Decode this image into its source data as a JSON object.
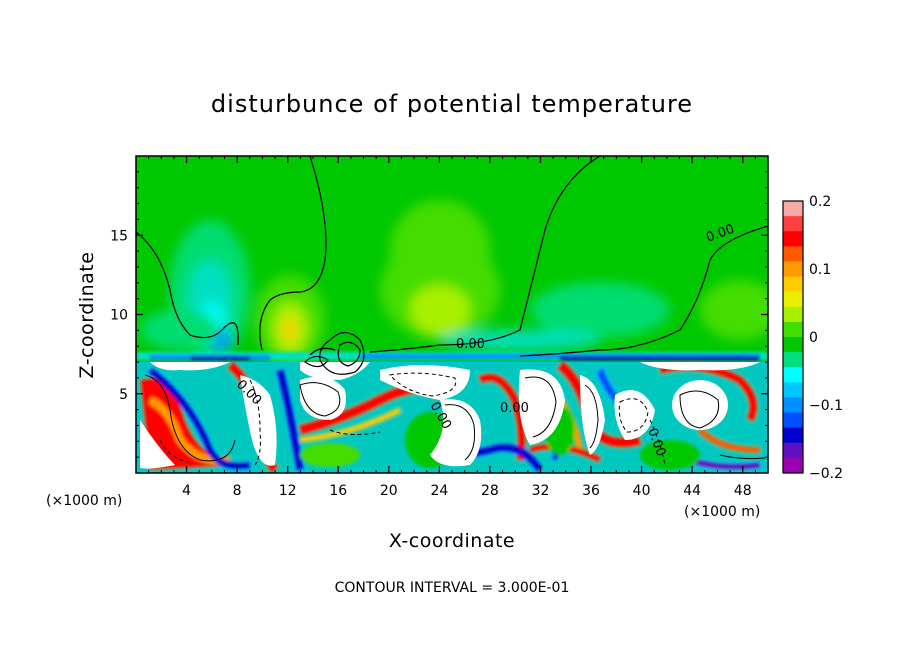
{
  "chart_data": {
    "type": "heatmap",
    "title": "disturbunce of potential temperature",
    "xlabel": "X-coordinate",
    "ylabel": "Z-coordinate",
    "x_unit": "(×1000 m)",
    "y_unit": "(×1000 m)",
    "xlim": [
      0,
      50
    ],
    "ylim": [
      0,
      20
    ],
    "x_ticks": [
      4,
      8,
      12,
      16,
      20,
      24,
      28,
      32,
      36,
      40,
      44,
      48
    ],
    "x_tick_labels": [
      "4",
      "8",
      "12",
      "16",
      "20",
      "24",
      "28",
      "32",
      "36",
      "40",
      "44",
      "48"
    ],
    "y_ticks": [
      5,
      10,
      15
    ],
    "y_tick_labels": [
      "5",
      "10",
      "15"
    ],
    "colorbar": {
      "range": [
        -0.2,
        0.2
      ],
      "ticks": [
        0.2,
        0.1,
        0,
        -0.1,
        -0.2
      ],
      "tick_labels": [
        "0.2",
        "0.1",
        "0",
        "−0.1",
        "−0.2"
      ],
      "colors": [
        "#f7a8a8",
        "#ff4040",
        "#ff0000",
        "#ff5a00",
        "#ff9900",
        "#ffcc00",
        "#e8f000",
        "#a8f000",
        "#44dd00",
        "#00c800",
        "#00e080",
        "#00ffff",
        "#00c8ff",
        "#0090ff",
        "#0050ff",
        "#0000d0",
        "#6010c0",
        "#9a00b0"
      ]
    },
    "contour_labels": [
      "0.00",
      "0.00",
      "0.00",
      "0.00",
      "0.00",
      "0.00"
    ],
    "contour_interval": "CONTOUR INTERVAL = 3.000E-01",
    "background_value": 0,
    "inversion_height": 7
  }
}
